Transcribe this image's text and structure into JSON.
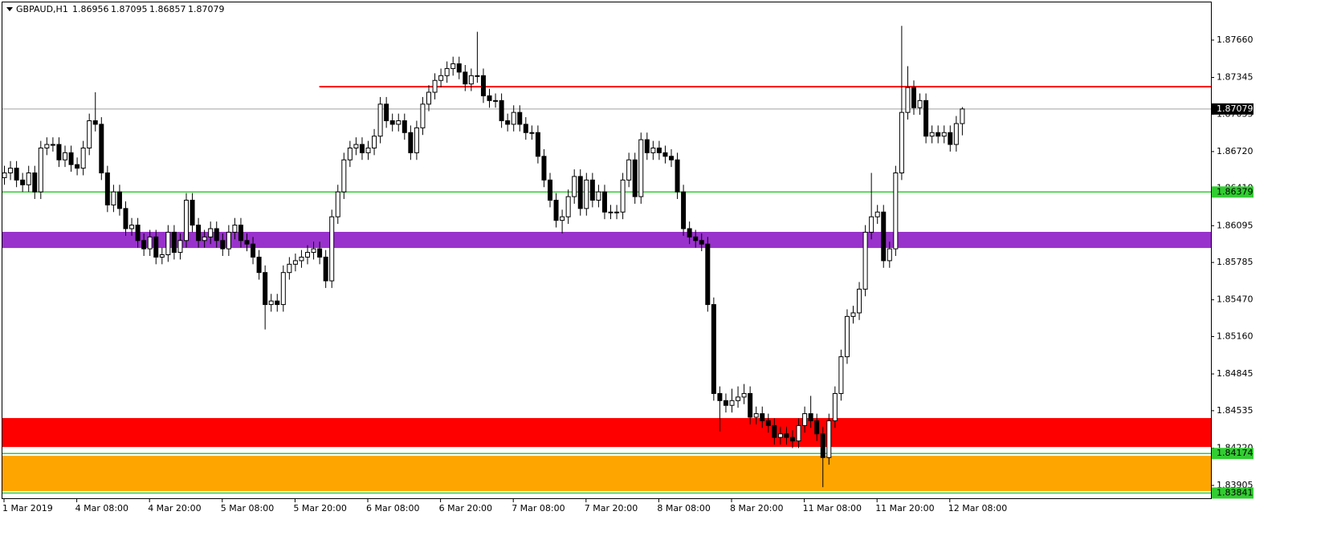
{
  "chart_data": {
    "type": "candlestick",
    "title": "GBPAUD,H1",
    "ylim": [
      1.8379,
      1.87998
    ],
    "yticks": [
      {
        "value": 1.8766,
        "label": "1.87660"
      },
      1.87345,
      1.87035,
      {
        "value": 1.8672,
        "label": "1.86720"
      },
      {
        "value": 1.8641,
        "label": "1.86410"
      },
      1.86095,
      1.85785,
      {
        "value": 1.8547,
        "label": "1.85470"
      },
      {
        "value": 1.8516,
        "label": "1.85160"
      },
      1.84845,
      1.84535,
      {
        "value": 1.8422,
        "label": "1.84220"
      },
      1.83905
    ],
    "xticks": [
      {
        "value": 0,
        "label": "1 Mar 2019"
      },
      {
        "value": 12,
        "label": "4 Mar 08:00"
      },
      {
        "value": 24,
        "label": "4 Mar 20:00"
      },
      {
        "value": 36,
        "label": "5 Mar 08:00"
      },
      {
        "value": 48,
        "label": "5 Mar 20:00"
      },
      {
        "value": 60,
        "label": "6 Mar 08:00"
      },
      {
        "value": 72,
        "label": "6 Mar 20:00"
      },
      {
        "value": 84,
        "label": "7 Mar 08:00"
      },
      {
        "value": 96,
        "label": "7 Mar 20:00"
      },
      {
        "value": 108,
        "label": "8 Mar 08:00"
      },
      {
        "value": 120,
        "label": "8 Mar 20:00"
      },
      {
        "value": 132,
        "label": "11 Mar 08:00"
      },
      {
        "value": 144,
        "label": "11 Mar 20:00"
      },
      {
        "value": 156,
        "label": "12 Mar 08:00"
      }
    ],
    "up_color": "#ffffff",
    "down_color": "#000000",
    "zones": [
      {
        "from": 1.86043,
        "to": 1.85907,
        "color": "#9932cc"
      },
      {
        "from": 1.84473,
        "to": 1.84229,
        "color": "#ff0000"
      },
      {
        "from": 1.84155,
        "to": 1.83857,
        "color": "#ffa500"
      }
    ],
    "levels": [
      {
        "value": 1.87079,
        "color": "#a0a0a0",
        "label_color": "#000000"
      },
      {
        "value": 1.86379,
        "color": "#32cd32",
        "label_color": "#32cd32"
      },
      {
        "value": 1.84174,
        "color": "#32cd32",
        "label_color": "#32cd32"
      },
      {
        "value": 1.83841,
        "color": "#32cd32",
        "label_color": "#32cd32"
      }
    ],
    "trend_line": {
      "value": 1.87267,
      "start_index": 52,
      "color": "#ff0000"
    },
    "open": [
      1.865,
      1.8654,
      1.8658,
      1.8648,
      1.8644,
      1.8654,
      1.8638,
      1.8675,
      1.8678,
      1.8678,
      1.8665,
      1.8671,
      1.8661,
      1.8658,
      1.8675,
      1.8698,
      1.8695,
      1.8654,
      1.8627,
      1.8638,
      1.8624,
      1.8607,
      1.861,
      1.8597,
      1.859,
      1.86,
      1.8583,
      1.8585,
      1.8604,
      1.8587,
      1.8597,
      1.8631,
      1.861,
      1.8597,
      1.86,
      1.8607,
      1.8597,
      1.859,
      1.8604,
      1.861,
      1.8597,
      1.8594,
      1.8583,
      1.857,
      1.8543,
      1.8546,
      1.8543,
      1.857,
      1.8577,
      1.858,
      1.8583,
      1.8587,
      1.859,
      1.8583,
      1.8563,
      1.8617,
      1.8638,
      1.8665,
      1.8675,
      1.8678,
      1.8671,
      1.8675,
      1.8685,
      1.8712,
      1.8698,
      1.8695,
      1.8698,
      1.8688,
      1.8671,
      1.8692,
      1.8712,
      1.8722,
      1.8732,
      1.8736,
      1.8742,
      1.8746,
      1.8739,
      1.8729,
      1.8736,
      1.8736,
      1.8719,
      1.8715,
      1.8715,
      1.8698,
      1.8695,
      1.8705,
      1.8695,
      1.8688,
      1.8688,
      1.8668,
      1.8648,
      1.8631,
      1.8614,
      1.8617,
      1.8634,
      1.8651,
      1.8624,
      1.8648,
      1.8631,
      1.8638,
      1.8621,
      1.8621,
      1.8621,
      1.8648,
      1.8665,
      1.8634,
      1.8682,
      1.8671,
      1.8675,
      1.8671,
      1.8668,
      1.8665,
      1.8638,
      1.8607,
      1.86,
      1.8597,
      1.8594,
      1.8543,
      1.8468,
      1.8462,
      1.8458,
      1.8462,
      1.8465,
      1.8468,
      1.8448,
      1.8451,
      1.8445,
      1.8441,
      1.8431,
      1.8434,
      1.8431,
      1.8428,
      1.8441,
      1.8451,
      1.8445,
      1.8434,
      1.8414,
      1.8445,
      1.8468,
      1.8499,
      1.8533,
      1.8536,
      1.8556,
      1.8604,
      1.8617,
      1.8621,
      1.858,
      1.859,
      1.8654,
      1.8705,
      1.8726,
      1.8709,
      1.8715,
      1.8685,
      1.8688,
      1.8685,
      1.8688,
      1.8678,
      1.86956
    ],
    "high": [
      1.866,
      1.8664,
      1.8664,
      1.8654,
      1.866,
      1.866,
      1.8681,
      1.8684,
      1.8684,
      1.8684,
      1.8677,
      1.8677,
      1.8667,
      1.8681,
      1.8704,
      1.8722,
      1.8701,
      1.866,
      1.8644,
      1.8644,
      1.863,
      1.8616,
      1.8616,
      1.8603,
      1.8606,
      1.8606,
      1.8591,
      1.861,
      1.861,
      1.8603,
      1.8637,
      1.8637,
      1.8616,
      1.8606,
      1.8613,
      1.8613,
      1.8603,
      1.861,
      1.8616,
      1.8616,
      1.8603,
      1.86,
      1.8589,
      1.8576,
      1.8552,
      1.8552,
      1.8576,
      1.8583,
      1.8586,
      1.8589,
      1.8593,
      1.8596,
      1.8596,
      1.8589,
      1.8623,
      1.8644,
      1.8671,
      1.8681,
      1.8684,
      1.8684,
      1.8681,
      1.8691,
      1.8718,
      1.8718,
      1.8704,
      1.8704,
      1.8704,
      1.8694,
      1.8698,
      1.8718,
      1.8728,
      1.8738,
      1.8742,
      1.8748,
      1.8752,
      1.8752,
      1.8745,
      1.8742,
      1.8773,
      1.8742,
      1.8725,
      1.8721,
      1.8721,
      1.8704,
      1.8711,
      1.8711,
      1.8701,
      1.8694,
      1.8694,
      1.8674,
      1.8654,
      1.8637,
      1.8623,
      1.864,
      1.8657,
      1.8657,
      1.8654,
      1.8654,
      1.8644,
      1.8644,
      1.8627,
      1.8627,
      1.8654,
      1.8671,
      1.8671,
      1.8688,
      1.8688,
      1.8681,
      1.8681,
      1.8677,
      1.8674,
      1.8671,
      1.8644,
      1.8613,
      1.8606,
      1.8603,
      1.86,
      1.8549,
      1.8474,
      1.8468,
      1.8472,
      1.8474,
      1.8476,
      1.8474,
      1.8457,
      1.8457,
      1.8451,
      1.8447,
      1.844,
      1.844,
      1.8437,
      1.8447,
      1.8457,
      1.8466,
      1.8451,
      1.844,
      1.8451,
      1.8474,
      1.8505,
      1.8539,
      1.8542,
      1.8562,
      1.861,
      1.8654,
      1.8627,
      1.8627,
      1.8596,
      1.866,
      1.8778,
      1.8744,
      1.8732,
      1.8721,
      1.8721,
      1.8694,
      1.8694,
      1.8694,
      1.8694,
      1.8702,
      1.87095
    ],
    "low": [
      1.8644,
      1.8648,
      1.8642,
      1.8638,
      1.8638,
      1.8632,
      1.8632,
      1.8669,
      1.8672,
      1.8659,
      1.8659,
      1.8655,
      1.8652,
      1.8652,
      1.8669,
      1.8689,
      1.8648,
      1.8621,
      1.8621,
      1.8618,
      1.8601,
      1.8601,
      1.8591,
      1.8584,
      1.8584,
      1.8577,
      1.8577,
      1.8579,
      1.8581,
      1.8581,
      1.8591,
      1.8604,
      1.8591,
      1.8591,
      1.8594,
      1.8591,
      1.8584,
      1.8584,
      1.8598,
      1.8591,
      1.8588,
      1.8577,
      1.8564,
      1.8522,
      1.8537,
      1.8537,
      1.8537,
      1.8564,
      1.8571,
      1.8574,
      1.8577,
      1.8581,
      1.8577,
      1.8557,
      1.8557,
      1.8611,
      1.8632,
      1.8659,
      1.8669,
      1.8665,
      1.8665,
      1.8669,
      1.8679,
      1.8692,
      1.8689,
      1.8689,
      1.8682,
      1.8665,
      1.8665,
      1.8686,
      1.8706,
      1.8716,
      1.8726,
      1.873,
      1.8736,
      1.8733,
      1.8723,
      1.8723,
      1.873,
      1.8713,
      1.8709,
      1.8709,
      1.8692,
      1.8689,
      1.8689,
      1.8689,
      1.8682,
      1.8682,
      1.8662,
      1.8642,
      1.8625,
      1.8608,
      1.8603,
      1.8611,
      1.8628,
      1.8618,
      1.8618,
      1.8625,
      1.8625,
      1.8615,
      1.8615,
      1.8615,
      1.8615,
      1.8642,
      1.8628,
      1.8628,
      1.8665,
      1.8665,
      1.8665,
      1.8662,
      1.8659,
      1.8632,
      1.8601,
      1.8594,
      1.8591,
      1.8588,
      1.8537,
      1.8462,
      1.8436,
      1.8452,
      1.8452,
      1.8456,
      1.8459,
      1.8442,
      1.8442,
      1.8439,
      1.8435,
      1.8425,
      1.8425,
      1.8425,
      1.8422,
      1.8422,
      1.8435,
      1.8439,
      1.8428,
      1.8389,
      1.8408,
      1.8439,
      1.8462,
      1.8493,
      1.8527,
      1.853,
      1.855,
      1.8598,
      1.8611,
      1.8574,
      1.8574,
      1.8584,
      1.8648,
      1.8699,
      1.8703,
      1.8703,
      1.8679,
      1.8679,
      1.8679,
      1.8679,
      1.8672,
      1.8672,
      1.86857
    ],
    "close": [
      1.8654,
      1.8658,
      1.8648,
      1.8644,
      1.8654,
      1.8638,
      1.8675,
      1.8678,
      1.8678,
      1.8665,
      1.8671,
      1.8661,
      1.8658,
      1.8675,
      1.8698,
      1.8695,
      1.8654,
      1.8627,
      1.8638,
      1.8624,
      1.8607,
      1.861,
      1.8597,
      1.859,
      1.86,
      1.8583,
      1.8585,
      1.8604,
      1.8587,
      1.8597,
      1.8631,
      1.861,
      1.8597,
      1.86,
      1.8607,
      1.8597,
      1.859,
      1.8604,
      1.861,
      1.8597,
      1.8594,
      1.8583,
      1.857,
      1.8543,
      1.8546,
      1.8543,
      1.857,
      1.8577,
      1.858,
      1.8583,
      1.8587,
      1.859,
      1.8583,
      1.8563,
      1.8617,
      1.8638,
      1.8665,
      1.8675,
      1.8678,
      1.8671,
      1.8675,
      1.8685,
      1.8712,
      1.8698,
      1.8695,
      1.8698,
      1.8688,
      1.8671,
      1.8692,
      1.8712,
      1.8722,
      1.8732,
      1.8736,
      1.8742,
      1.8746,
      1.8739,
      1.8729,
      1.8736,
      1.8736,
      1.8719,
      1.8715,
      1.8715,
      1.8698,
      1.8695,
      1.8705,
      1.8695,
      1.8688,
      1.8688,
      1.8668,
      1.8648,
      1.8631,
      1.8614,
      1.8617,
      1.8634,
      1.8651,
      1.8624,
      1.8648,
      1.8631,
      1.8638,
      1.8621,
      1.8621,
      1.8621,
      1.8648,
      1.8665,
      1.8634,
      1.8682,
      1.8671,
      1.8675,
      1.8671,
      1.8668,
      1.8665,
      1.8638,
      1.8607,
      1.86,
      1.8597,
      1.8594,
      1.8543,
      1.8468,
      1.8462,
      1.8458,
      1.8462,
      1.8465,
      1.8468,
      1.8448,
      1.8451,
      1.8445,
      1.8441,
      1.8431,
      1.8434,
      1.8431,
      1.8428,
      1.8441,
      1.8451,
      1.8445,
      1.8434,
      1.8414,
      1.8445,
      1.8468,
      1.8499,
      1.8533,
      1.8536,
      1.8556,
      1.8604,
      1.8617,
      1.8621,
      1.858,
      1.859,
      1.8654,
      1.8705,
      1.8726,
      1.8709,
      1.8715,
      1.8685,
      1.8688,
      1.8685,
      1.8688,
      1.8678,
      1.86956,
      1.87079
    ]
  }
}
